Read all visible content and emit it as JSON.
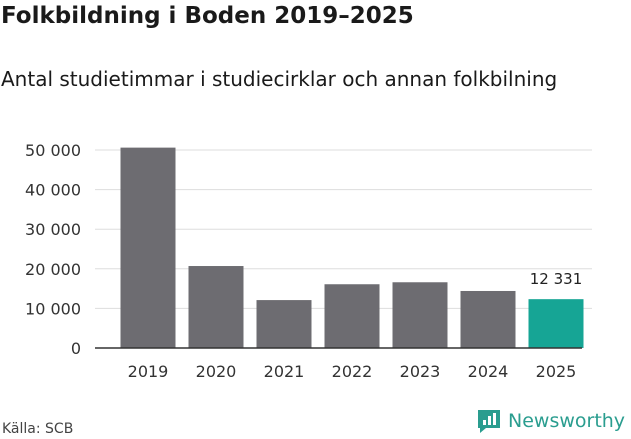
{
  "title": "Folkbildning i Boden 2019–2025",
  "subtitle": "Antal studietimmar i studiecirklar och annan folkbilning",
  "source": "Källa: SCB",
  "brand": "Newsworthy",
  "colors": {
    "bar": "#6d6c71",
    "highlight": "#16a595",
    "grid": "#dddddd",
    "brand": "#2a9d8f"
  },
  "chart_data": {
    "type": "bar",
    "title": "Folkbildning i Boden 2019–2025",
    "subtitle": "Antal studietimmar i studiecirklar och annan folkbilning",
    "xlabel": "",
    "ylabel": "",
    "categories": [
      "2019",
      "2020",
      "2021",
      "2022",
      "2023",
      "2024",
      "2025"
    ],
    "values": [
      50600,
      20700,
      12100,
      16100,
      16600,
      14400,
      12331
    ],
    "ylim": [
      0,
      50000
    ],
    "yticks": [
      0,
      10000,
      20000,
      30000,
      40000,
      50000
    ],
    "ytick_labels": [
      "0",
      "10 000",
      "20 000",
      "30 000",
      "40 000",
      "50 000"
    ],
    "highlight_index": 6,
    "annotation": {
      "category": "2025",
      "text": "12 331"
    },
    "grid": true
  }
}
